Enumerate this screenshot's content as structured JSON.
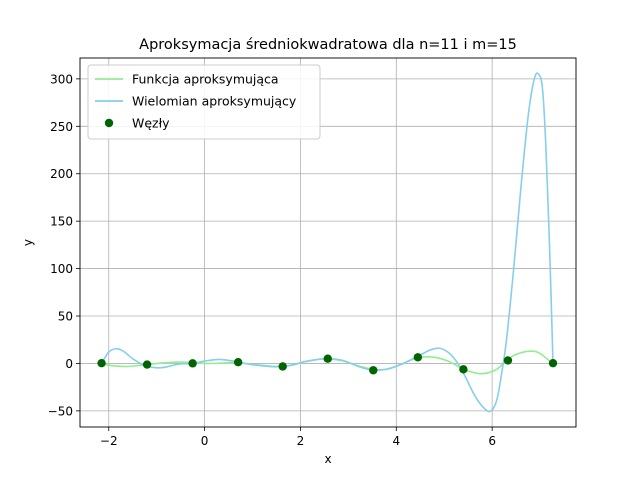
{
  "chart_data": {
    "type": "line",
    "title": "Aproksymacja średniokwadratowa dla n=11 i m=15",
    "xlabel": "x",
    "ylabel": "y",
    "xlim": [
      -2.6,
      7.75
    ],
    "ylim": [
      -67,
      322
    ],
    "xticks": [
      -2,
      0,
      2,
      4,
      6
    ],
    "yticks": [
      -50,
      0,
      50,
      100,
      150,
      200,
      250,
      300
    ],
    "grid": true,
    "legend_position": "top-left",
    "series": [
      {
        "name": "Funkcja aproksymująca",
        "kind": "line",
        "color": "#90ee90",
        "x": [
          -2.15,
          -1.9,
          -1.6,
          -1.35,
          -1.1,
          -0.8,
          -0.5,
          -0.25,
          0.0,
          0.3,
          0.6,
          0.9,
          1.2,
          1.5,
          1.8,
          2.1,
          2.4,
          2.6,
          2.9,
          3.2,
          3.5,
          3.8,
          4.1,
          4.45,
          4.8,
          5.1,
          5.4,
          5.7,
          5.9,
          6.1,
          6.3,
          6.5,
          6.8,
          7.0,
          7.25
        ],
        "y": [
          -0.3,
          -2.5,
          -3.2,
          -2.0,
          -0.6,
          0.8,
          1.5,
          0.8,
          0.0,
          0.2,
          0.9,
          -0.3,
          -2.0,
          -3.2,
          -2.0,
          2.0,
          4.5,
          4.8,
          2.5,
          -2.5,
          -6.0,
          -6.2,
          -1.0,
          6.0,
          6.5,
          2.0,
          -6.0,
          -10.5,
          -10.0,
          -6.0,
          3.0,
          9.5,
          13.0,
          10.5,
          0.2
        ]
      },
      {
        "name": "Wielomian aproksymujący",
        "kind": "line",
        "color": "#87ceeb",
        "x": [
          -2.15,
          -2.0,
          -1.85,
          -1.7,
          -1.5,
          -1.3,
          -1.1,
          -0.9,
          -0.7,
          -0.5,
          -0.25,
          0.0,
          0.3,
          0.6,
          0.9,
          1.2,
          1.5,
          1.8,
          2.1,
          2.4,
          2.6,
          2.9,
          3.2,
          3.5,
          3.8,
          4.1,
          4.45,
          4.7,
          4.9,
          5.1,
          5.3,
          5.45,
          5.65,
          5.85,
          5.98,
          6.1,
          6.2,
          6.3,
          6.45,
          6.6,
          6.75,
          6.88,
          6.97,
          7.05,
          7.12,
          7.2,
          7.27
        ],
        "y": [
          0,
          12,
          15.5,
          13,
          5,
          -1,
          -4,
          -4.5,
          -2.5,
          -0.5,
          0,
          2.5,
          4.2,
          2.5,
          -0.5,
          -2.5,
          -3.5,
          -2,
          2,
          4.5,
          5,
          3,
          -3,
          -7,
          -6,
          -1,
          7.5,
          14,
          16,
          11,
          -1,
          -15,
          -35,
          -48,
          -50,
          -38,
          -10,
          25,
          100,
          185,
          260,
          300,
          305,
          290,
          230,
          120,
          0
        ]
      },
      {
        "name": "Węzły",
        "kind": "scatter",
        "color": "#006400",
        "x": [
          -2.15,
          -1.2,
          -0.25,
          0.7,
          1.63,
          2.57,
          3.52,
          4.45,
          5.4,
          6.33,
          7.27
        ],
        "y": [
          0.3,
          -1.2,
          0.1,
          1.3,
          -3.2,
          5.0,
          -7.2,
          6.5,
          -6.2,
          3.2,
          0.3
        ]
      }
    ]
  }
}
